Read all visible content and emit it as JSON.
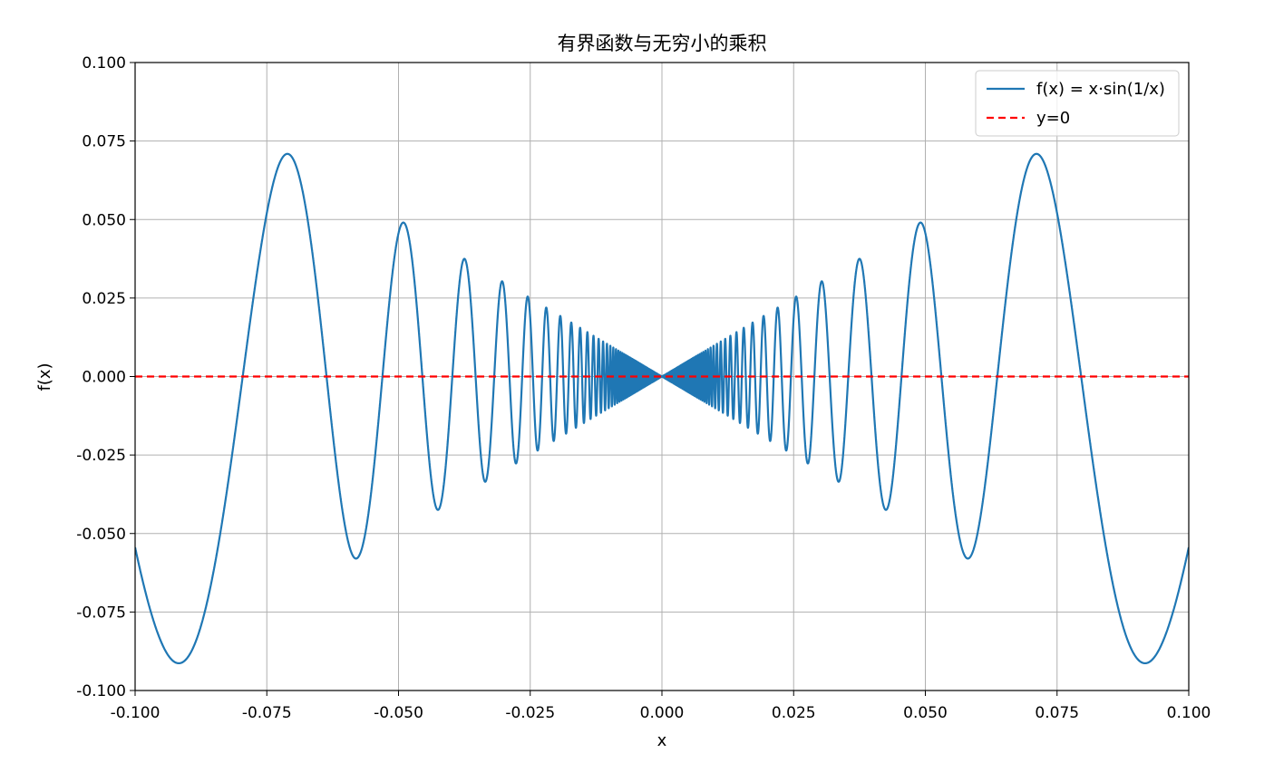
{
  "chart_data": {
    "type": "line",
    "title": "有界函数与无穷小的乘积",
    "xlabel": "x",
    "ylabel": "f(x)",
    "xlim": [
      -0.1,
      0.1
    ],
    "ylim": [
      -0.1,
      0.1
    ],
    "xticks": [
      -0.1,
      -0.075,
      -0.05,
      -0.025,
      0.0,
      0.025,
      0.05,
      0.075,
      0.1
    ],
    "yticks": [
      -0.1,
      -0.075,
      -0.05,
      -0.025,
      0.0,
      0.025,
      0.05,
      0.075,
      0.1
    ],
    "xtick_labels": [
      "-0.100",
      "-0.075",
      "-0.050",
      "-0.025",
      "0.000",
      "0.025",
      "0.050",
      "0.075",
      "0.100"
    ],
    "ytick_labels": [
      "-0.100",
      "-0.075",
      "-0.050",
      "-0.025",
      "0.000",
      "0.025",
      "0.050",
      "0.075",
      "0.100"
    ],
    "grid": true,
    "legend_position": "top-right",
    "series": [
      {
        "name": "f(x) = x·sin(1/x)",
        "function": "x*sin(1/x)",
        "color": "#1f77b4",
        "style": "solid",
        "sample_points": [
          {
            "x": -0.1,
            "y": -0.0544
          },
          {
            "x": -0.0917,
            "y": -0.0913
          },
          {
            "x": -0.0713,
            "y": 0.071
          },
          {
            "x": -0.0577,
            "y": -0.058
          },
          {
            "x": -0.049,
            "y": 0.049
          },
          {
            "x": -0.0424,
            "y": -0.042
          },
          {
            "x": -0.0374,
            "y": 0.037
          },
          {
            "x": -0.0334,
            "y": -0.033
          },
          {
            "x": -0.0302,
            "y": 0.03
          },
          {
            "x": -0.0276,
            "y": -0.028
          },
          {
            "x": -0.0254,
            "y": 0.025
          },
          {
            "x": 0.0,
            "y": 0.0
          },
          {
            "x": 0.0254,
            "y": 0.025
          },
          {
            "x": 0.0276,
            "y": -0.028
          },
          {
            "x": 0.0302,
            "y": 0.03
          },
          {
            "x": 0.0334,
            "y": -0.033
          },
          {
            "x": 0.0374,
            "y": 0.037
          },
          {
            "x": 0.0424,
            "y": -0.042
          },
          {
            "x": 0.049,
            "y": 0.049
          },
          {
            "x": 0.0577,
            "y": -0.058
          },
          {
            "x": 0.0713,
            "y": 0.071
          },
          {
            "x": 0.0917,
            "y": -0.0913
          },
          {
            "x": 0.1,
            "y": -0.0544
          }
        ]
      },
      {
        "name": "y=0",
        "function": "0",
        "color": "#ff0000",
        "style": "dashed",
        "sample_points": [
          {
            "x": -0.1,
            "y": 0.0
          },
          {
            "x": 0.1,
            "y": 0.0
          }
        ]
      }
    ]
  }
}
